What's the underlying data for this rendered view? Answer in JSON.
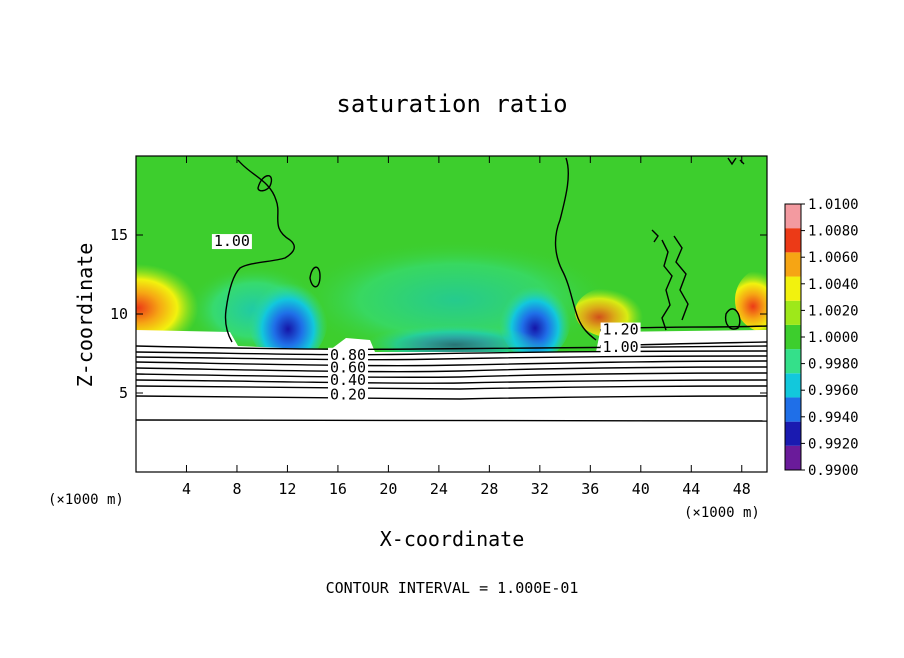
{
  "chart_data": {
    "type": "heatmap",
    "title": "saturation ratio",
    "xlabel": "X-coordinate",
    "ylabel": "Z-coordinate",
    "x_units": "(×1000 m)",
    "x_units_right": "(×1000 m)",
    "xlim": [
      0,
      50
    ],
    "ylim": [
      0,
      20
    ],
    "x_ticks": [
      4,
      8,
      12,
      16,
      20,
      24,
      28,
      32,
      36,
      40,
      44,
      48
    ],
    "y_ticks": [
      5,
      10,
      15
    ],
    "footer": "CONTOUR INTERVAL = 1.000E-01",
    "colorbar": {
      "ticks": [
        "0.9900",
        "0.9920",
        "0.9940",
        "0.9960",
        "0.9980",
        "1.0000",
        "1.0020",
        "1.0040",
        "1.0060",
        "1.0080",
        "1.0100"
      ],
      "colors": [
        "#6a1b9a",
        "#1a1ab0",
        "#1f6fe8",
        "#12c8dc",
        "#34e08a",
        "#3dce2d",
        "#9ee81a",
        "#f2f20e",
        "#f6a514",
        "#ec3a17",
        "#f39aa0"
      ]
    },
    "contour_labels": [
      {
        "text": "1.00",
        "x": 7.6,
        "z": 14.3
      },
      {
        "text": "1.20",
        "x": 38.4,
        "z": 8.7
      },
      {
        "text": "1.00",
        "x": 38.4,
        "z": 7.6
      },
      {
        "text": "0.80",
        "x": 16.8,
        "z": 7.1
      },
      {
        "text": "0.60",
        "x": 16.8,
        "z": 6.3
      },
      {
        "text": "0.40",
        "x": 16.8,
        "z": 5.5
      },
      {
        "text": "0.20",
        "x": 16.8,
        "z": 4.6
      }
    ]
  }
}
